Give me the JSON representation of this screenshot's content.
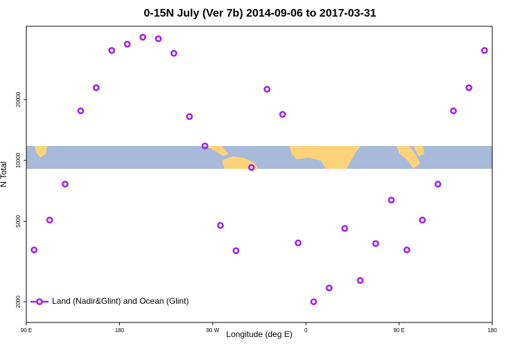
{
  "chart_data": {
    "type": "scatter",
    "title": "0-15N July (Ver 7b)   2014-09-06 to 2017-03-31",
    "x_label": "Longitude (deg E)",
    "y_label": "N Total",
    "x": [
      97.5,
      112.5,
      127.5,
      142.5,
      157.5,
      172.5,
      187.5,
      202.5,
      217.5,
      232.5,
      247.5,
      262.5,
      277.5,
      292.5,
      307.5,
      322.5,
      337.5,
      352.5,
      367.5,
      382.5,
      397.5,
      412.5,
      427.5,
      442.5,
      457.5,
      472.5,
      487.5,
      502.5,
      517.5,
      532.5
    ],
    "series": [
      {
        "name": "Land (Nadir&Glint) and Ocean (Glint)",
        "color": "#a020f0",
        "values": [
          3610,
          5070,
          7640,
          17600,
          22900,
          35000,
          37600,
          40700,
          40000,
          33900,
          16500,
          11800,
          4770,
          3580,
          9230,
          22500,
          16900,
          3910,
          2000,
          2340,
          4610,
          2550,
          3880,
          6370,
          3610,
          5070,
          7640,
          17600,
          22900,
          35000
        ]
      }
    ],
    "xlim": [
      90,
      540
    ],
    "xticks": [
      {
        "value": 90,
        "label": "90 E"
      },
      {
        "value": 180,
        "label": "180"
      },
      {
        "value": 270,
        "label": "90 W"
      },
      {
        "value": 360,
        "label": "0"
      },
      {
        "value": 450,
        "label": "90 E"
      },
      {
        "value": 540,
        "label": "180"
      }
    ],
    "ylim": [
      1580,
      46100
    ],
    "yticks": [
      2000,
      5000,
      10000,
      20000
    ],
    "log_y": true,
    "legend": "bottom-left"
  }
}
